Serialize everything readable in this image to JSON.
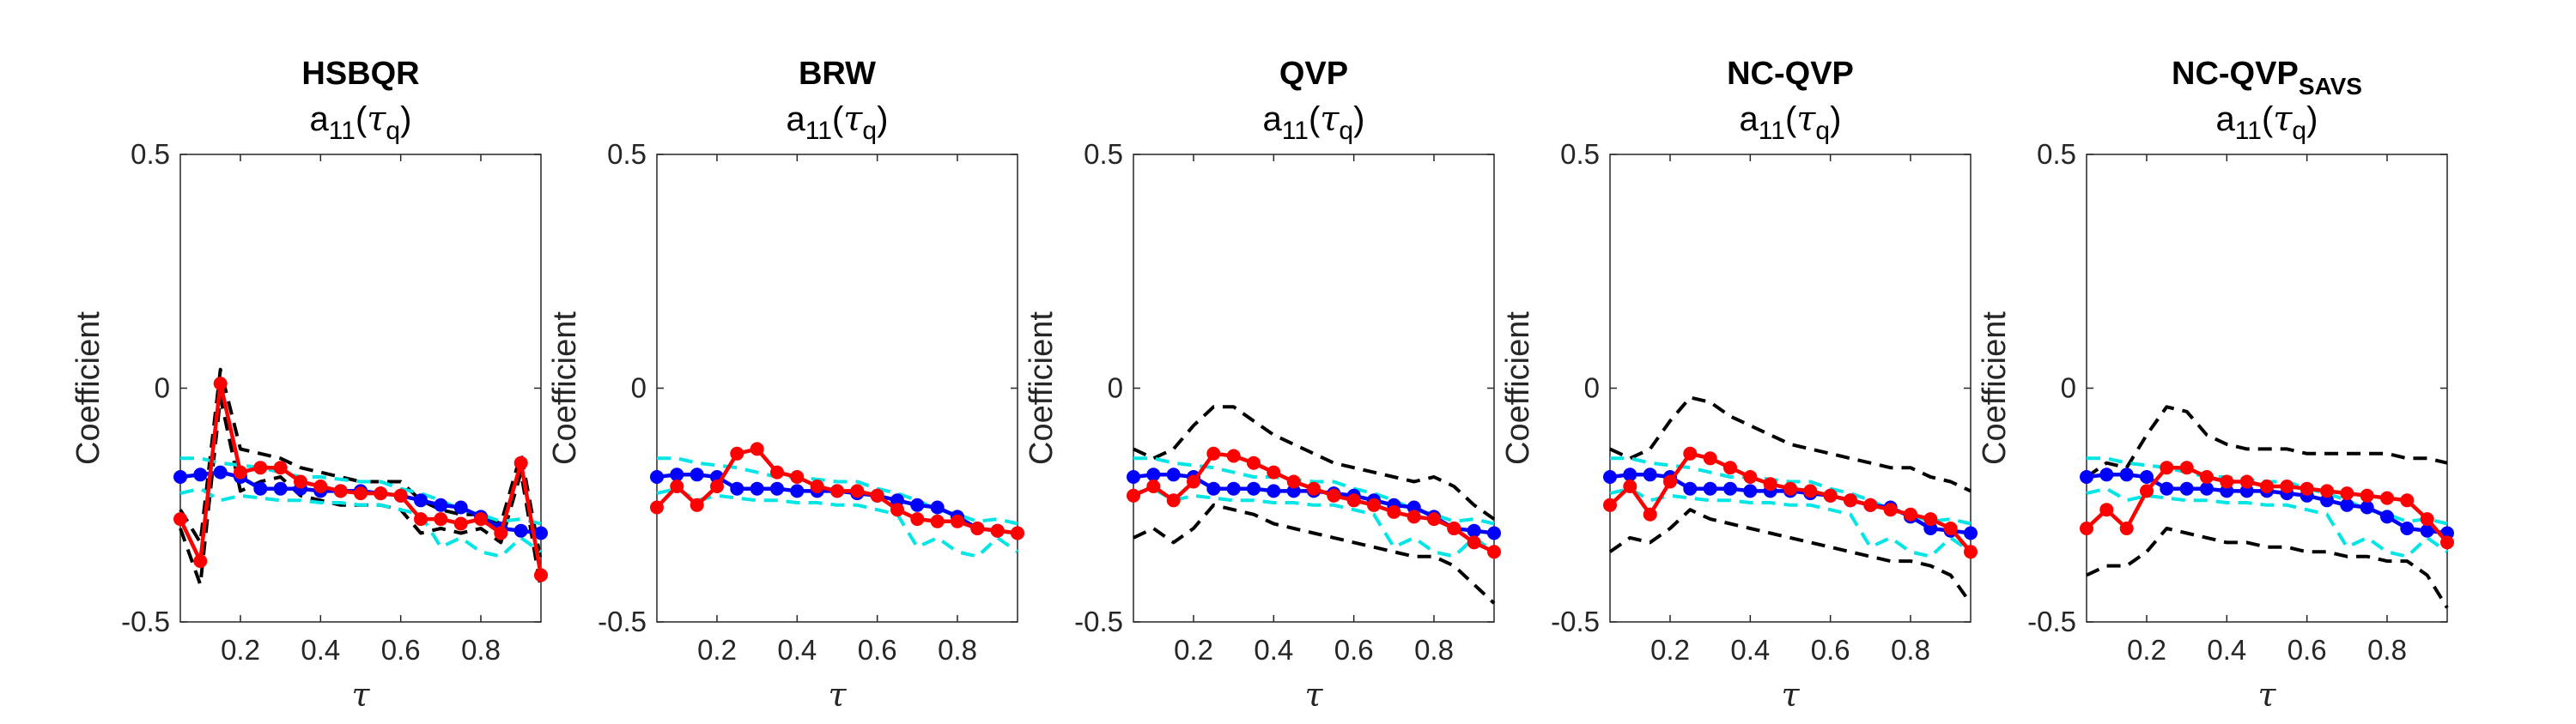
{
  "colors": {
    "median": "#0000ff",
    "estimate": "#ff0000",
    "quantile_band": "#00e5e5",
    "confidence_band": "#000000",
    "axes": "#262626"
  },
  "chart_data": [
    {
      "type": "line",
      "title": "HSBQR",
      "subtitle": "a11(τq)",
      "xlabel": "τ",
      "ylabel": "Coefficient",
      "xlim": [
        0.05,
        0.95
      ],
      "ylim": [
        -0.5,
        0.5
      ],
      "xticks": [
        0.2,
        0.4,
        0.6,
        0.8
      ],
      "yticks": [
        -0.5,
        0,
        0.5
      ],
      "x": [
        0.05,
        0.1,
        0.15,
        0.2,
        0.25,
        0.3,
        0.35,
        0.4,
        0.45,
        0.5,
        0.55,
        0.6,
        0.65,
        0.7,
        0.75,
        0.8,
        0.85,
        0.9,
        0.95
      ],
      "series": [
        {
          "role": "median",
          "style": "solid-markers",
          "values": [
            -0.19,
            -0.185,
            -0.18,
            -0.19,
            -0.215,
            -0.215,
            -0.215,
            -0.22,
            -0.22,
            -0.22,
            -0.225,
            -0.23,
            -0.24,
            -0.25,
            -0.255,
            -0.275,
            -0.3,
            -0.305,
            -0.31
          ]
        },
        {
          "role": "estimate",
          "style": "solid-markers",
          "values": [
            -0.28,
            -0.37,
            0.01,
            -0.18,
            -0.17,
            -0.17,
            -0.2,
            -0.21,
            -0.22,
            -0.225,
            -0.225,
            -0.23,
            -0.28,
            -0.28,
            -0.29,
            -0.28,
            -0.31,
            -0.16,
            -0.4
          ]
        },
        {
          "role": "quantile_band",
          "style": "dashed",
          "values": [
            -0.15,
            -0.15,
            -0.16,
            -0.165,
            -0.17,
            -0.18,
            -0.19,
            -0.19,
            -0.195,
            -0.2,
            -0.2,
            -0.215,
            -0.225,
            -0.24,
            -0.26,
            -0.27,
            -0.285,
            -0.28,
            -0.29
          ]
        },
        {
          "role": "quantile_band",
          "style": "dashed",
          "values": [
            -0.225,
            -0.215,
            -0.24,
            -0.23,
            -0.235,
            -0.24,
            -0.24,
            -0.245,
            -0.245,
            -0.25,
            -0.25,
            -0.26,
            -0.27,
            -0.34,
            -0.32,
            -0.35,
            -0.36,
            -0.32,
            -0.35
          ]
        },
        {
          "role": "confidence_band",
          "style": "dashed",
          "values": [
            -0.26,
            -0.33,
            0.04,
            -0.13,
            -0.14,
            -0.15,
            -0.17,
            -0.18,
            -0.19,
            -0.2,
            -0.2,
            -0.2,
            -0.24,
            -0.26,
            -0.27,
            -0.27,
            -0.29,
            -0.14,
            -0.37
          ]
        },
        {
          "role": "confidence_band",
          "style": "dashed",
          "values": [
            -0.3,
            -0.42,
            -0.02,
            -0.22,
            -0.2,
            -0.19,
            -0.23,
            -0.24,
            -0.25,
            -0.25,
            -0.25,
            -0.26,
            -0.31,
            -0.3,
            -0.31,
            -0.3,
            -0.33,
            -0.18,
            -0.43
          ]
        }
      ]
    },
    {
      "type": "line",
      "title": "BRW",
      "subtitle": "a11(τq)",
      "xlabel": "τ",
      "ylabel": "Coefficient",
      "xlim": [
        0.05,
        0.95
      ],
      "ylim": [
        -0.5,
        0.5
      ],
      "xticks": [
        0.2,
        0.4,
        0.6,
        0.8
      ],
      "yticks": [
        -0.5,
        0,
        0.5
      ],
      "x": [
        0.05,
        0.1,
        0.15,
        0.2,
        0.25,
        0.3,
        0.35,
        0.4,
        0.45,
        0.5,
        0.55,
        0.6,
        0.65,
        0.7,
        0.75,
        0.8,
        0.85,
        0.9,
        0.95
      ],
      "series": [
        {
          "role": "median",
          "style": "solid-markers",
          "values": [
            -0.19,
            -0.185,
            -0.185,
            -0.19,
            -0.215,
            -0.215,
            -0.215,
            -0.22,
            -0.22,
            -0.22,
            -0.225,
            -0.23,
            -0.24,
            -0.25,
            -0.255,
            -0.275,
            -0.3,
            -0.305,
            -0.31
          ]
        },
        {
          "role": "estimate",
          "style": "solid-markers",
          "values": [
            -0.255,
            -0.21,
            -0.25,
            -0.21,
            -0.14,
            -0.13,
            -0.18,
            -0.19,
            -0.21,
            -0.22,
            -0.22,
            -0.23,
            -0.26,
            -0.28,
            -0.285,
            -0.285,
            -0.3,
            -0.305,
            -0.31
          ]
        },
        {
          "role": "quantile_band",
          "style": "dashed",
          "values": [
            -0.15,
            -0.15,
            -0.16,
            -0.165,
            -0.17,
            -0.18,
            -0.19,
            -0.19,
            -0.195,
            -0.2,
            -0.2,
            -0.215,
            -0.225,
            -0.24,
            -0.26,
            -0.27,
            -0.285,
            -0.28,
            -0.29
          ]
        },
        {
          "role": "quantile_band",
          "style": "dashed",
          "values": [
            -0.225,
            -0.215,
            -0.24,
            -0.23,
            -0.235,
            -0.24,
            -0.24,
            -0.245,
            -0.245,
            -0.25,
            -0.25,
            -0.26,
            -0.27,
            -0.34,
            -0.32,
            -0.35,
            -0.36,
            -0.32,
            -0.35
          ]
        }
      ]
    },
    {
      "type": "line",
      "title": "QVP",
      "subtitle": "a11(τq)",
      "xlabel": "τ",
      "ylabel": "Coefficient",
      "xlim": [
        0.05,
        0.95
      ],
      "ylim": [
        -0.5,
        0.5
      ],
      "xticks": [
        0.2,
        0.4,
        0.6,
        0.8
      ],
      "yticks": [
        -0.5,
        0,
        0.5
      ],
      "x": [
        0.05,
        0.1,
        0.15,
        0.2,
        0.25,
        0.3,
        0.35,
        0.4,
        0.45,
        0.5,
        0.55,
        0.6,
        0.65,
        0.7,
        0.75,
        0.8,
        0.85,
        0.9,
        0.95
      ],
      "series": [
        {
          "role": "median",
          "style": "solid-markers",
          "values": [
            -0.19,
            -0.185,
            -0.185,
            -0.19,
            -0.215,
            -0.215,
            -0.215,
            -0.22,
            -0.22,
            -0.22,
            -0.225,
            -0.23,
            -0.24,
            -0.25,
            -0.255,
            -0.275,
            -0.3,
            -0.305,
            -0.31
          ]
        },
        {
          "role": "estimate",
          "style": "solid-markers",
          "values": [
            -0.23,
            -0.21,
            -0.24,
            -0.2,
            -0.14,
            -0.145,
            -0.16,
            -0.18,
            -0.2,
            -0.215,
            -0.23,
            -0.24,
            -0.25,
            -0.265,
            -0.275,
            -0.28,
            -0.3,
            -0.33,
            -0.35
          ]
        },
        {
          "role": "quantile_band",
          "style": "dashed",
          "values": [
            -0.15,
            -0.15,
            -0.16,
            -0.165,
            -0.17,
            -0.18,
            -0.19,
            -0.19,
            -0.195,
            -0.2,
            -0.2,
            -0.215,
            -0.225,
            -0.24,
            -0.26,
            -0.27,
            -0.285,
            -0.28,
            -0.29
          ]
        },
        {
          "role": "quantile_band",
          "style": "dashed",
          "values": [
            -0.225,
            -0.215,
            -0.24,
            -0.23,
            -0.235,
            -0.24,
            -0.24,
            -0.245,
            -0.245,
            -0.25,
            -0.25,
            -0.26,
            -0.27,
            -0.34,
            -0.32,
            -0.35,
            -0.36,
            -0.32,
            -0.35
          ]
        },
        {
          "role": "confidence_band",
          "style": "dashed",
          "values": [
            -0.13,
            -0.15,
            -0.13,
            -0.08,
            -0.04,
            -0.04,
            -0.07,
            -0.1,
            -0.12,
            -0.14,
            -0.16,
            -0.17,
            -0.18,
            -0.19,
            -0.2,
            -0.19,
            -0.21,
            -0.25,
            -0.28
          ]
        },
        {
          "role": "confidence_band",
          "style": "dashed",
          "values": [
            -0.32,
            -0.3,
            -0.33,
            -0.3,
            -0.25,
            -0.26,
            -0.27,
            -0.29,
            -0.3,
            -0.31,
            -0.32,
            -0.33,
            -0.34,
            -0.35,
            -0.36,
            -0.36,
            -0.38,
            -0.42,
            -0.46
          ]
        }
      ]
    },
    {
      "type": "line",
      "title": "NC-QVP",
      "subtitle": "a11(τq)",
      "xlabel": "τ",
      "ylabel": "Coefficient",
      "xlim": [
        0.05,
        0.95
      ],
      "ylim": [
        -0.5,
        0.5
      ],
      "xticks": [
        0.2,
        0.4,
        0.6,
        0.8
      ],
      "yticks": [
        -0.5,
        0,
        0.5
      ],
      "x": [
        0.05,
        0.1,
        0.15,
        0.2,
        0.25,
        0.3,
        0.35,
        0.4,
        0.45,
        0.5,
        0.55,
        0.6,
        0.65,
        0.7,
        0.75,
        0.8,
        0.85,
        0.9,
        0.95
      ],
      "series": [
        {
          "role": "median",
          "style": "solid-markers",
          "values": [
            -0.19,
            -0.185,
            -0.185,
            -0.19,
            -0.215,
            -0.215,
            -0.215,
            -0.22,
            -0.22,
            -0.22,
            -0.225,
            -0.23,
            -0.24,
            -0.25,
            -0.255,
            -0.275,
            -0.3,
            -0.305,
            -0.31
          ]
        },
        {
          "role": "estimate",
          "style": "solid-markers",
          "values": [
            -0.25,
            -0.21,
            -0.27,
            -0.2,
            -0.14,
            -0.15,
            -0.17,
            -0.19,
            -0.205,
            -0.215,
            -0.22,
            -0.23,
            -0.24,
            -0.25,
            -0.26,
            -0.27,
            -0.28,
            -0.3,
            -0.35
          ]
        },
        {
          "role": "quantile_band",
          "style": "dashed",
          "values": [
            -0.15,
            -0.15,
            -0.16,
            -0.165,
            -0.17,
            -0.18,
            -0.19,
            -0.19,
            -0.195,
            -0.2,
            -0.2,
            -0.215,
            -0.225,
            -0.24,
            -0.26,
            -0.27,
            -0.285,
            -0.28,
            -0.29
          ]
        },
        {
          "role": "quantile_band",
          "style": "dashed",
          "values": [
            -0.225,
            -0.215,
            -0.24,
            -0.23,
            -0.235,
            -0.24,
            -0.24,
            -0.245,
            -0.245,
            -0.25,
            -0.25,
            -0.26,
            -0.27,
            -0.34,
            -0.32,
            -0.35,
            -0.36,
            -0.32,
            -0.35
          ]
        },
        {
          "role": "confidence_band",
          "style": "dashed",
          "values": [
            -0.13,
            -0.15,
            -0.13,
            -0.07,
            -0.02,
            -0.03,
            -0.06,
            -0.08,
            -0.1,
            -0.12,
            -0.13,
            -0.14,
            -0.15,
            -0.16,
            -0.17,
            -0.17,
            -0.19,
            -0.2,
            -0.22
          ]
        },
        {
          "role": "confidence_band",
          "style": "dashed",
          "values": [
            -0.35,
            -0.32,
            -0.33,
            -0.3,
            -0.26,
            -0.28,
            -0.29,
            -0.3,
            -0.31,
            -0.32,
            -0.33,
            -0.34,
            -0.35,
            -0.36,
            -0.37,
            -0.37,
            -0.38,
            -0.4,
            -0.46
          ]
        }
      ]
    },
    {
      "type": "line",
      "title": "NC-QVP",
      "title_subscript": "SAVS",
      "subtitle": "a11(τq)",
      "xlabel": "τ",
      "ylabel": "Coefficient",
      "xlim": [
        0.05,
        0.95
      ],
      "ylim": [
        -0.5,
        0.5
      ],
      "xticks": [
        0.2,
        0.4,
        0.6,
        0.8
      ],
      "yticks": [
        -0.5,
        0,
        0.5
      ],
      "x": [
        0.05,
        0.1,
        0.15,
        0.2,
        0.25,
        0.3,
        0.35,
        0.4,
        0.45,
        0.5,
        0.55,
        0.6,
        0.65,
        0.7,
        0.75,
        0.8,
        0.85,
        0.9,
        0.95
      ],
      "series": [
        {
          "role": "median",
          "style": "solid-markers",
          "values": [
            -0.19,
            -0.185,
            -0.185,
            -0.19,
            -0.215,
            -0.215,
            -0.215,
            -0.22,
            -0.22,
            -0.22,
            -0.225,
            -0.23,
            -0.24,
            -0.25,
            -0.255,
            -0.275,
            -0.3,
            -0.305,
            -0.31
          ]
        },
        {
          "role": "estimate",
          "style": "solid-markers",
          "values": [
            -0.3,
            -0.26,
            -0.3,
            -0.22,
            -0.17,
            -0.17,
            -0.19,
            -0.2,
            -0.2,
            -0.21,
            -0.21,
            -0.215,
            -0.22,
            -0.225,
            -0.23,
            -0.235,
            -0.24,
            -0.28,
            -0.33
          ]
        },
        {
          "role": "quantile_band",
          "style": "dashed",
          "values": [
            -0.15,
            -0.15,
            -0.16,
            -0.165,
            -0.17,
            -0.18,
            -0.19,
            -0.19,
            -0.195,
            -0.2,
            -0.2,
            -0.215,
            -0.225,
            -0.24,
            -0.26,
            -0.27,
            -0.285,
            -0.28,
            -0.29
          ]
        },
        {
          "role": "quantile_band",
          "style": "dashed",
          "values": [
            -0.225,
            -0.215,
            -0.24,
            -0.23,
            -0.235,
            -0.24,
            -0.24,
            -0.245,
            -0.245,
            -0.25,
            -0.25,
            -0.26,
            -0.27,
            -0.34,
            -0.32,
            -0.35,
            -0.36,
            -0.32,
            -0.35
          ]
        },
        {
          "role": "confidence_band",
          "style": "dashed",
          "values": [
            -0.19,
            -0.16,
            -0.17,
            -0.1,
            -0.04,
            -0.05,
            -0.1,
            -0.12,
            -0.13,
            -0.13,
            -0.13,
            -0.14,
            -0.14,
            -0.14,
            -0.14,
            -0.14,
            -0.15,
            -0.15,
            -0.16
          ]
        },
        {
          "role": "confidence_band",
          "style": "dashed",
          "values": [
            -0.4,
            -0.38,
            -0.38,
            -0.35,
            -0.3,
            -0.31,
            -0.32,
            -0.33,
            -0.33,
            -0.34,
            -0.34,
            -0.35,
            -0.35,
            -0.36,
            -0.36,
            -0.37,
            -0.37,
            -0.4,
            -0.47
          ]
        }
      ]
    }
  ]
}
